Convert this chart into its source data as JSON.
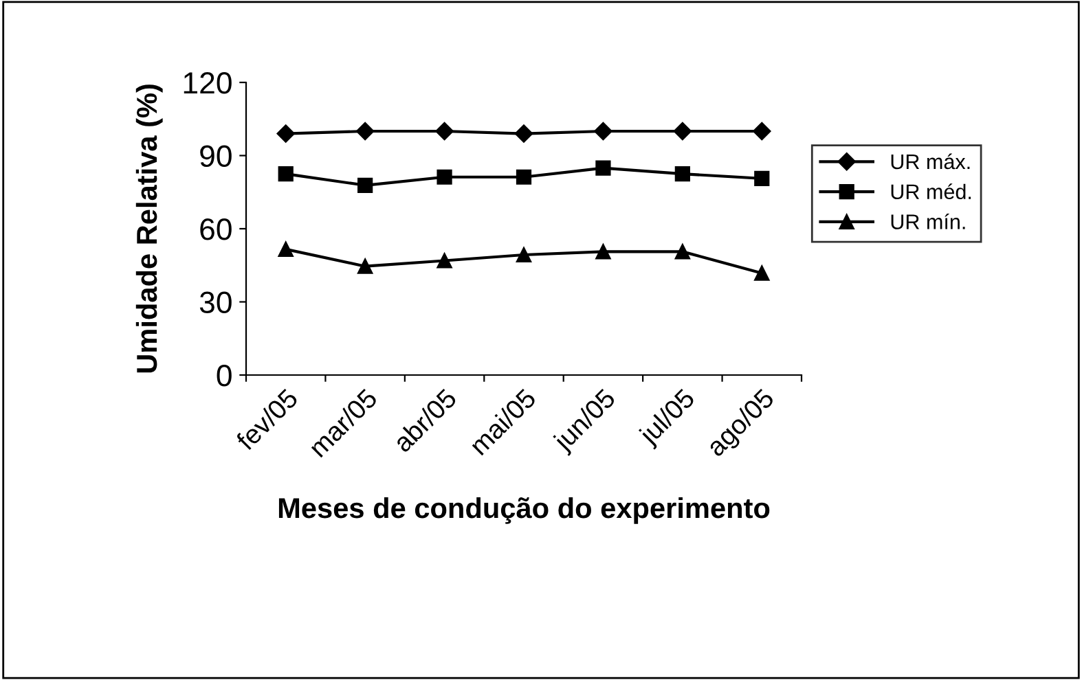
{
  "chart_data": {
    "type": "line",
    "xlabel": "Meses de condução do experimento",
    "ylabel": "Umidade Relativa (%)",
    "categories": [
      "fev/05",
      "mar/05",
      "abr/05",
      "mai/05",
      "jun/05",
      "jul/05",
      "ago/05"
    ],
    "series": [
      {
        "name": "UR máx.",
        "color": "#000000",
        "marker": "diamond",
        "values": [
          99,
          100,
          100,
          99,
          100,
          100,
          100
        ]
      },
      {
        "name": "UR méd.",
        "color": "#000000",
        "marker": "square",
        "values": [
          82.5,
          77.8,
          81.2,
          81.2,
          84.9,
          82.5,
          80.6
        ]
      },
      {
        "name": "UR mín.",
        "color": "#000000",
        "marker": "triangle",
        "values": [
          51.6,
          44.6,
          46.9,
          49.3,
          50.6,
          50.6,
          41.8
        ]
      }
    ],
    "ylim": [
      0,
      120
    ],
    "yticks": [
      0,
      30,
      60,
      90,
      120
    ],
    "grid": false,
    "legend": "right",
    "line_style": "solid"
  }
}
